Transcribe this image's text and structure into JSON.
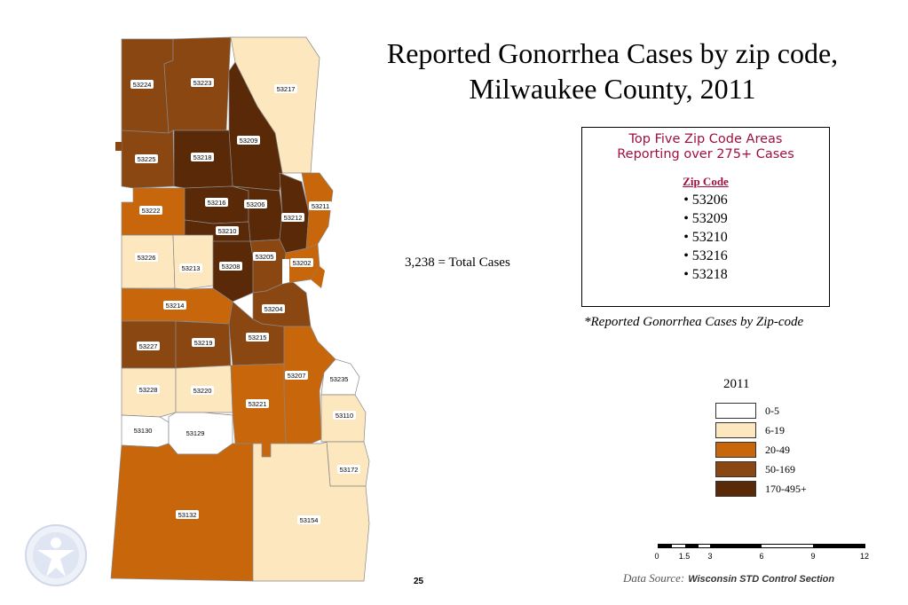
{
  "title": {
    "line1": "Reported Gonorrhea Cases by zip code,",
    "line2": "Milwaukee County, 2011"
  },
  "top_five": {
    "title_line1": "Top Five Zip Code Areas",
    "title_line2": "Reporting over 275+ Cases",
    "column_header": "Zip Code",
    "items": [
      "• 53206",
      "• 53209",
      "• 53210",
      "• 53216",
      "• 53218"
    ]
  },
  "total_cases": "3,238 = Total Cases",
  "footnote": "*Reported Gonorrhea Cases by Zip-code",
  "legend": {
    "title": "2011",
    "items": [
      {
        "label": "0-5",
        "color": "#ffffff"
      },
      {
        "label": "6-19",
        "color": "#fde7bf"
      },
      {
        "label": "20-49",
        "color": "#c8660b"
      },
      {
        "label": "50-169",
        "color": "#8a4712"
      },
      {
        "label": "170-495+",
        "color": "#5a2908"
      }
    ]
  },
  "zip_codes": [
    {
      "zip": "53224",
      "category": "50-169"
    },
    {
      "zip": "53223",
      "category": "50-169"
    },
    {
      "zip": "53217",
      "category": "6-19"
    },
    {
      "zip": "53209",
      "category": "170-495+"
    },
    {
      "zip": "53225",
      "category": "50-169"
    },
    {
      "zip": "53218",
      "category": "170-495+"
    },
    {
      "zip": "53222",
      "category": "20-49"
    },
    {
      "zip": "53216",
      "category": "170-495+"
    },
    {
      "zip": "53206",
      "category": "170-495+"
    },
    {
      "zip": "53212",
      "category": "170-495+"
    },
    {
      "zip": "53211",
      "category": "20-49"
    },
    {
      "zip": "53210",
      "category": "170-495+"
    },
    {
      "zip": "53226",
      "category": "6-19"
    },
    {
      "zip": "53213",
      "category": "6-19"
    },
    {
      "zip": "53208",
      "category": "170-495+"
    },
    {
      "zip": "53205",
      "category": "50-169"
    },
    {
      "zip": "53202",
      "category": "20-49"
    },
    {
      "zip": "53214",
      "category": "20-49"
    },
    {
      "zip": "53204",
      "category": "50-169"
    },
    {
      "zip": "53227",
      "category": "50-169"
    },
    {
      "zip": "53219",
      "category": "50-169"
    },
    {
      "zip": "53215",
      "category": "50-169"
    },
    {
      "zip": "53207",
      "category": "20-49"
    },
    {
      "zip": "53235",
      "category": "0-5"
    },
    {
      "zip": "53228",
      "category": "6-19"
    },
    {
      "zip": "53220",
      "category": "6-19"
    },
    {
      "zip": "53221",
      "category": "20-49"
    },
    {
      "zip": "53110",
      "category": "6-19"
    },
    {
      "zip": "53130",
      "category": "0-5"
    },
    {
      "zip": "53129",
      "category": "0-5"
    },
    {
      "zip": "53172",
      "category": "6-19"
    },
    {
      "zip": "53132",
      "category": "20-49"
    },
    {
      "zip": "53154",
      "category": "6-19"
    }
  ],
  "scale_bar": {
    "labels": [
      "0",
      "1.5",
      "3",
      "6",
      "9",
      "12"
    ]
  },
  "page_number": "25",
  "data_source": {
    "prefix": "Data Source:",
    "name": "Wisconsin STD Control Section"
  }
}
